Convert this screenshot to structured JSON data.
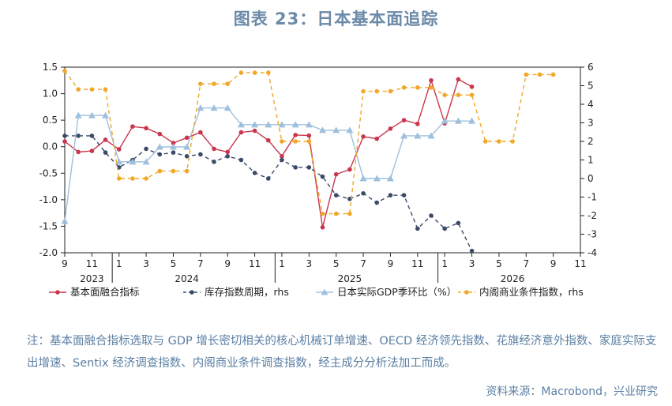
{
  "title": "图表 23：日本基本面追踪",
  "note": "注：基本面融合指标选取与 GDP 增长密切相关的核心机械订单增速、OECD 经济领先指数、花旗经济意外指数、家庭实际支出增速、Sentix 经济调查指数、内阁商业条件调查指数，经主成分分析法加工而成。",
  "source": "资料来源：Macrobond，兴业研究",
  "chart_data": {
    "type": "line",
    "title": "",
    "x_tick_labels": [
      "9",
      "11",
      "1",
      "3",
      "5",
      "7",
      "9",
      "11",
      "1",
      "3",
      "5",
      "7",
      "9",
      "11",
      "1",
      "3",
      "5",
      "7",
      "9",
      "11"
    ],
    "year_labels": [
      "2023",
      "2024",
      "2025",
      "2026"
    ],
    "ylim_left": [
      -2.0,
      1.5
    ],
    "yticks_left": [
      "1.5",
      "1.0",
      "0.5",
      "0.0",
      "-0.5",
      "-1.0",
      "-1.5",
      "-2.0"
    ],
    "ylim_right": [
      -4,
      6
    ],
    "yticks_right": [
      "6",
      "5",
      "4",
      "3",
      "2",
      "1",
      "0",
      "-1",
      "-2",
      "-3",
      "-4"
    ],
    "series": [
      {
        "name": "基本面融合指标",
        "axis": "left",
        "color": "#c9354d",
        "style": "solid",
        "marker": "circle",
        "x": [
          "2023-09",
          "2023-10",
          "2023-11",
          "2023-12",
          "2024-01",
          "2024-02",
          "2024-03",
          "2024-04",
          "2024-05",
          "2024-06",
          "2024-07",
          "2024-08",
          "2024-09",
          "2024-10",
          "2024-11",
          "2024-12",
          "2025-01",
          "2025-02",
          "2025-03",
          "2025-04",
          "2025-05",
          "2025-06",
          "2025-07",
          "2025-08",
          "2025-09",
          "2025-10",
          "2025-11",
          "2025-12",
          "2026-01",
          "2026-02",
          "2026-03"
        ],
        "values": [
          0.1,
          -0.1,
          -0.08,
          0.13,
          -0.05,
          0.38,
          0.35,
          0.24,
          0.07,
          0.17,
          0.27,
          -0.04,
          -0.1,
          0.27,
          0.3,
          0.12,
          -0.18,
          0.22,
          0.21,
          -1.52,
          -0.52,
          -0.43,
          0.19,
          0.15,
          0.34,
          0.5,
          0.43,
          1.25,
          0.44,
          1.27,
          1.13
        ]
      },
      {
        "name": "库存指数周期，rhs",
        "axis": "right",
        "color": "#3b4a68",
        "style": "dashed",
        "marker": "circle",
        "x": [
          "2023-09",
          "2023-10",
          "2023-11",
          "2023-12",
          "2024-01",
          "2024-02",
          "2024-03",
          "2024-04",
          "2024-05",
          "2024-06",
          "2024-07",
          "2024-08",
          "2024-09",
          "2024-10",
          "2024-11",
          "2024-12",
          "2025-01",
          "2025-02",
          "2025-03",
          "2025-04",
          "2025-05",
          "2025-06",
          "2025-07",
          "2025-08",
          "2025-09",
          "2025-10",
          "2025-11",
          "2025-12",
          "2026-01",
          "2026-02",
          "2026-03"
        ],
        "values": [
          2.3,
          2.3,
          2.3,
          1.4,
          0.6,
          1.0,
          1.6,
          1.3,
          1.4,
          1.2,
          1.3,
          0.9,
          1.2,
          1.0,
          0.3,
          0.0,
          1.0,
          0.6,
          0.6,
          0.1,
          -0.9,
          -1.1,
          -0.8,
          -1.3,
          -0.9,
          -0.9,
          -2.7,
          -2.0,
          -2.7,
          -2.4,
          -3.9
        ]
      },
      {
        "name": "日本实际GDP季环比（%）",
        "axis": "right",
        "color": "#9ec0dd",
        "style": "solid",
        "marker": "triangle",
        "x": [
          "2023-09",
          "2023-10",
          "2023-11",
          "2023-12",
          "2024-01",
          "2024-02",
          "2024-03",
          "2024-04",
          "2024-05",
          "2024-06",
          "2024-07",
          "2024-08",
          "2024-09",
          "2024-10",
          "2024-11",
          "2024-12",
          "2025-01",
          "2025-02",
          "2025-03",
          "2025-04",
          "2025-05",
          "2025-06",
          "2025-07",
          "2025-08",
          "2025-09",
          "2025-10",
          "2025-11",
          "2025-12",
          "2026-01",
          "2026-02",
          "2026-03"
        ],
        "values": [
          -2.3,
          3.4,
          3.4,
          3.4,
          0.9,
          0.9,
          0.9,
          1.7,
          1.7,
          1.7,
          3.8,
          3.8,
          3.8,
          2.9,
          2.9,
          2.9,
          2.9,
          2.9,
          2.9,
          2.6,
          2.6,
          2.6,
          0.0,
          0.0,
          0.0,
          2.3,
          2.3,
          2.3,
          3.1,
          3.1,
          3.1
        ]
      },
      {
        "name": "内阁商业条件指数，rhs",
        "axis": "right",
        "color": "#f0a72a",
        "style": "dashed",
        "marker": "circle",
        "x": [
          "2023-09",
          "2023-10",
          "2023-11",
          "2023-12",
          "2024-01",
          "2024-02",
          "2024-03",
          "2024-04",
          "2024-05",
          "2024-06",
          "2024-07",
          "2024-08",
          "2024-09",
          "2024-10",
          "2024-11",
          "2024-12",
          "2025-01",
          "2025-02",
          "2025-03",
          "2025-04",
          "2025-05",
          "2025-06",
          "2025-07",
          "2025-08",
          "2025-09",
          "2025-10",
          "2025-11",
          "2025-12",
          "2026-01",
          "2026-02",
          "2026-03",
          "2026-04",
          "2026-05",
          "2026-06",
          "2026-07",
          "2026-08",
          "2026-09"
        ],
        "values": [
          5.8,
          4.8,
          4.8,
          4.8,
          0.0,
          0.0,
          0.0,
          0.4,
          0.4,
          0.4,
          5.1,
          5.1,
          5.1,
          5.7,
          5.7,
          5.7,
          2.0,
          2.0,
          2.0,
          -1.9,
          -1.9,
          -1.9,
          4.7,
          4.7,
          4.7,
          4.9,
          4.9,
          4.9,
          4.5,
          4.5,
          4.5,
          2.0,
          2.0,
          2.0,
          5.6,
          5.6,
          5.6
        ]
      }
    ],
    "legend_position": "bottom"
  }
}
